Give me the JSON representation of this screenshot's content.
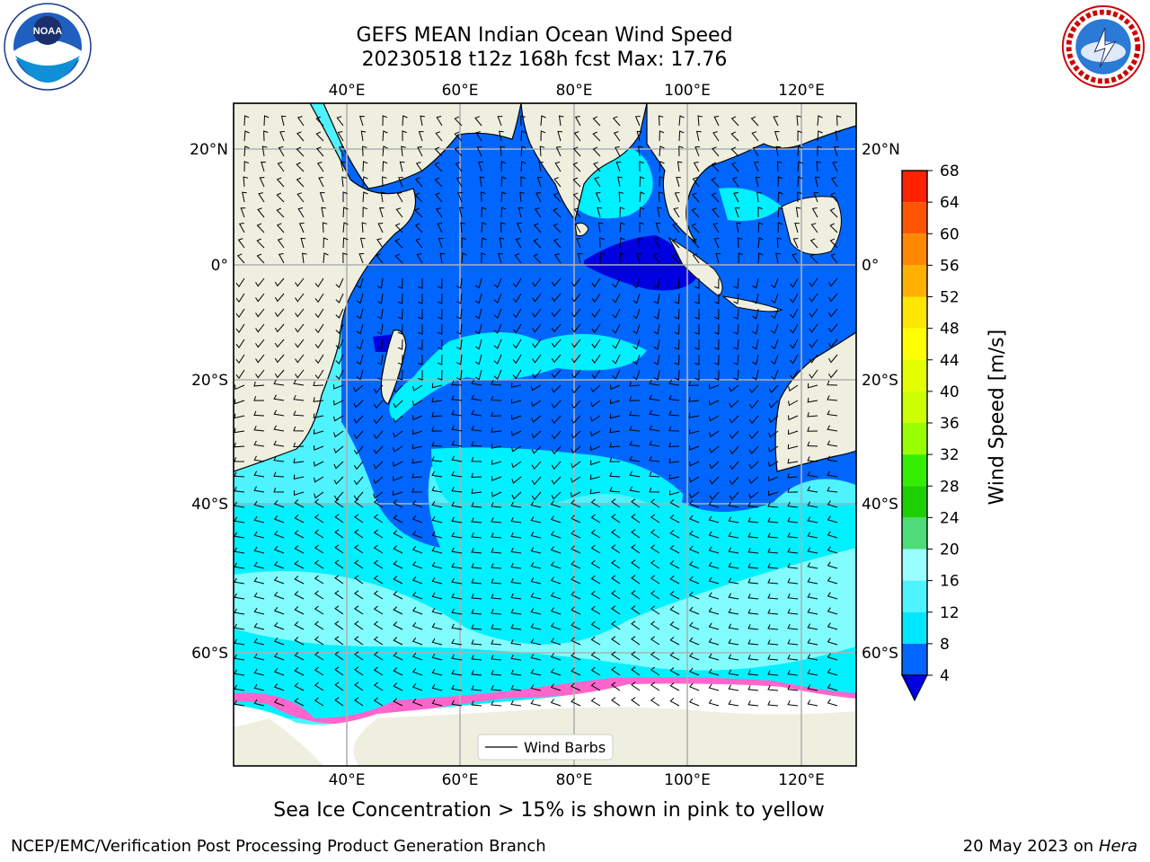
{
  "header": {
    "title_line1": "GEFS MEAN Indian Ocean Wind Speed",
    "title_line2": "20230518 t12z 168h fcst   Max: 17.76"
  },
  "logos": {
    "left": {
      "name": "noaa-logo-icon",
      "text": "NOAA"
    },
    "right": {
      "name": "nws-logo-icon",
      "text": "NATIONAL WEATHER SERVICE"
    }
  },
  "map": {
    "lon_labels": [
      "40°E",
      "60°E",
      "80°E",
      "100°E",
      "120°E"
    ],
    "lat_labels": [
      "20°N",
      "0°",
      "20°S",
      "40°S",
      "60°S"
    ],
    "legend_label": "Wind Barbs"
  },
  "colorbar": {
    "label": "Wind Speed [m/s]",
    "ticks": [
      "4",
      "8",
      "12",
      "16",
      "20",
      "24",
      "28",
      "32",
      "36",
      "40",
      "44",
      "48",
      "52",
      "56",
      "60",
      "64",
      "68"
    ],
    "colors": [
      "#0066ff",
      "#00e6ff",
      "#4ff2ff",
      "#99ffff",
      "#4ddc77",
      "#1fd000",
      "#33ee00",
      "#99ff00",
      "#ccff00",
      "#e6ff00",
      "#ffff00",
      "#ffe600",
      "#ffb000",
      "#ff8800",
      "#ff5500",
      "#ff2200"
    ],
    "under_color": "#0000e0"
  },
  "note": "Sea Ice Concentration > 15% is shown in pink to yellow",
  "footer": {
    "left": "NCEP/EMC/Verification Post Processing Product Generation Branch",
    "right_date": "20 May 2023 on",
    "right_host": "Hera"
  }
}
